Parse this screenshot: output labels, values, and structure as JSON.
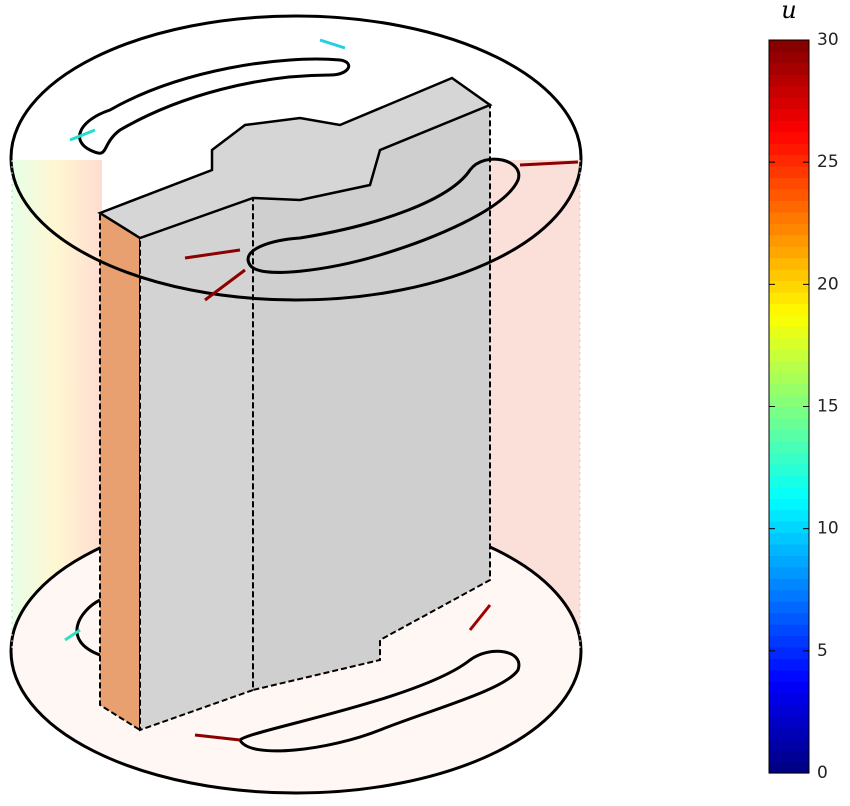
{
  "colorbar": {
    "label": "u",
    "lim": [
      0,
      30
    ],
    "ticks": [
      0,
      5,
      10,
      15,
      20,
      25,
      30
    ],
    "colormap": "jet"
  }
}
